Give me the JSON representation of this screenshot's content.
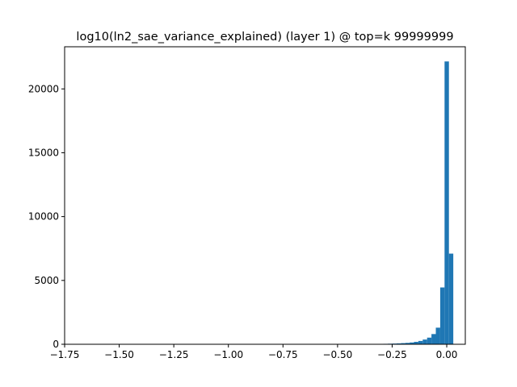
{
  "chart_data": {
    "type": "bar",
    "title": "log10(ln2_sae_variance_explained) (layer 1) @ top=k 99999999",
    "xlabel": "",
    "ylabel": "",
    "xlim": [
      -1.75,
      0.085
    ],
    "ylim": [
      0,
      23300
    ],
    "xticks": [
      -1.75,
      -1.5,
      -1.25,
      -1.0,
      -0.75,
      -0.5,
      -0.25,
      0.0
    ],
    "xtick_labels": [
      "−1.75",
      "−1.50",
      "−1.25",
      "−1.00",
      "−0.75",
      "−0.50",
      "−0.25",
      "0.00"
    ],
    "yticks": [
      0,
      5000,
      10000,
      15000,
      20000
    ],
    "ytick_labels": [
      "0",
      "5000",
      "10000",
      "15000",
      "20000"
    ],
    "bar_color": "#1f77b4",
    "bins": [
      {
        "x0": -0.31,
        "x1": -0.29,
        "count": 25
      },
      {
        "x0": -0.29,
        "x1": -0.27,
        "count": 35
      },
      {
        "x0": -0.27,
        "x1": -0.25,
        "count": 45
      },
      {
        "x0": -0.25,
        "x1": -0.23,
        "count": 55
      },
      {
        "x0": -0.23,
        "x1": -0.21,
        "count": 70
      },
      {
        "x0": -0.21,
        "x1": -0.19,
        "count": 90
      },
      {
        "x0": -0.19,
        "x1": -0.17,
        "count": 110
      },
      {
        "x0": -0.17,
        "x1": -0.15,
        "count": 140
      },
      {
        "x0": -0.15,
        "x1": -0.13,
        "count": 190
      },
      {
        "x0": -0.13,
        "x1": -0.11,
        "count": 260
      },
      {
        "x0": -0.11,
        "x1": -0.09,
        "count": 370
      },
      {
        "x0": -0.09,
        "x1": -0.07,
        "count": 520
      },
      {
        "x0": -0.07,
        "x1": -0.05,
        "count": 800
      },
      {
        "x0": -0.05,
        "x1": -0.03,
        "count": 1300
      },
      {
        "x0": -0.03,
        "x1": -0.01,
        "count": 4450
      },
      {
        "x0": -0.01,
        "x1": 0.01,
        "count": 22150
      },
      {
        "x0": 0.01,
        "x1": 0.03,
        "count": 7100
      }
    ]
  }
}
